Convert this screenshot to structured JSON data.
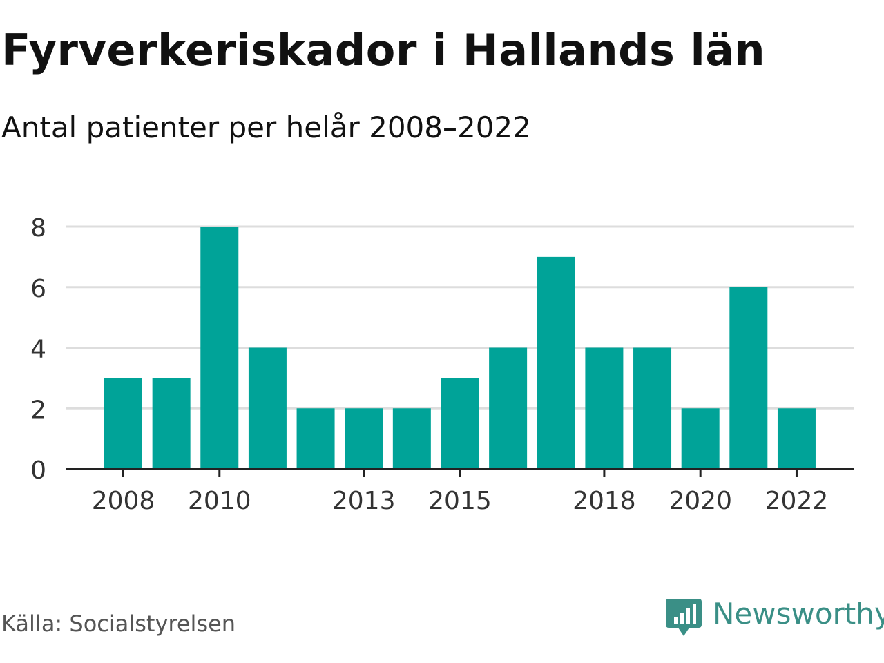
{
  "header": {
    "title": "Fyrverkeriskador i Hallands län",
    "subtitle": "Antal patienter per helår 2008–2022"
  },
  "footer": {
    "source": "Källa: Socialstyrelsen",
    "brand": "Newsworthy",
    "brand_icon": "chart-speech-bubble-icon"
  },
  "colors": {
    "bar": "#00a398",
    "grid": "#dddddd",
    "axis": "#222222",
    "brand": "#3a8f86"
  },
  "chart_data": {
    "type": "bar",
    "title": "Fyrverkeriskador i Hallands län",
    "subtitle": "Antal patienter per helår 2008–2022",
    "xlabel": "",
    "ylabel": "",
    "categories": [
      2008,
      2009,
      2010,
      2011,
      2012,
      2013,
      2014,
      2015,
      2016,
      2017,
      2018,
      2019,
      2020,
      2021,
      2022
    ],
    "values": [
      3,
      3,
      8,
      4,
      2,
      2,
      2,
      3,
      4,
      7,
      4,
      4,
      2,
      6,
      2
    ],
    "x_tick_labels": [
      "2008",
      "2010",
      "2013",
      "2015",
      "2018",
      "2020",
      "2022"
    ],
    "y_ticks": [
      0,
      2,
      4,
      6,
      8
    ],
    "ylim": [
      0,
      8
    ],
    "grid": true,
    "legend": "none"
  }
}
